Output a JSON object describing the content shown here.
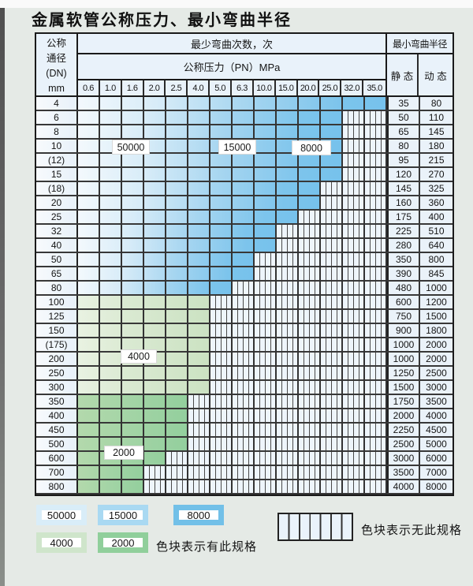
{
  "title": "金属软管公称压力、最小弯曲半径",
  "table": {
    "header": {
      "dn_lines": [
        "公称",
        "通径",
        "(DN)",
        "mm"
      ],
      "bend_cycles": "最少弯曲次数，次",
      "pressure": "公称压力（PN）MPa",
      "pressure_columns": [
        "0.6",
        "1.0",
        "1.6",
        "2.0",
        "2.5",
        "4.0",
        "5.0",
        "6.3",
        "10.0",
        "15.0",
        "20.0",
        "25.0",
        "32.0",
        "35.0"
      ],
      "bend_radius": "最小弯曲半径",
      "static_label": "静 态",
      "dynamic_label": "动 态"
    },
    "rows": [
      {
        "dn": "4",
        "colored": 14,
        "zone": "blue",
        "static": "35",
        "dynamic": "80"
      },
      {
        "dn": "6",
        "colored": 12,
        "zone": "blue",
        "static": "50",
        "dynamic": "110"
      },
      {
        "dn": "8",
        "colored": 12,
        "zone": "blue",
        "static": "65",
        "dynamic": "145"
      },
      {
        "dn": "10",
        "colored": 12,
        "zone": "blue",
        "static": "80",
        "dynamic": "180"
      },
      {
        "dn": "(12)",
        "colored": 12,
        "zone": "blue",
        "static": "95",
        "dynamic": "215"
      },
      {
        "dn": "15",
        "colored": 12,
        "zone": "blue",
        "static": "120",
        "dynamic": "270"
      },
      {
        "dn": "(18)",
        "colored": 11,
        "zone": "blue",
        "static": "145",
        "dynamic": "325"
      },
      {
        "dn": "20",
        "colored": 11,
        "zone": "blue",
        "static": "160",
        "dynamic": "360"
      },
      {
        "dn": "25",
        "colored": 10,
        "zone": "blue",
        "static": "175",
        "dynamic": "400"
      },
      {
        "dn": "32",
        "colored": 9,
        "zone": "blue",
        "static": "225",
        "dynamic": "510"
      },
      {
        "dn": "40",
        "colored": 9,
        "zone": "blue",
        "static": "280",
        "dynamic": "640"
      },
      {
        "dn": "50",
        "colored": 8,
        "zone": "blue",
        "static": "350",
        "dynamic": "800"
      },
      {
        "dn": "65",
        "colored": 8,
        "zone": "blue",
        "static": "390",
        "dynamic": "845"
      },
      {
        "dn": "80",
        "colored": 7,
        "zone": "blue",
        "static": "480",
        "dynamic": "1000"
      },
      {
        "dn": "100",
        "colored": 6,
        "zone": "green4",
        "static": "600",
        "dynamic": "1200"
      },
      {
        "dn": "125",
        "colored": 6,
        "zone": "green4",
        "static": "750",
        "dynamic": "1500"
      },
      {
        "dn": "150",
        "colored": 6,
        "zone": "green4",
        "static": "900",
        "dynamic": "1800"
      },
      {
        "dn": "(175)",
        "colored": 6,
        "zone": "green4",
        "static": "1000",
        "dynamic": "2000"
      },
      {
        "dn": "200",
        "colored": 6,
        "zone": "green4",
        "static": "1000",
        "dynamic": "2000"
      },
      {
        "dn": "250",
        "colored": 6,
        "zone": "green4",
        "static": "1250",
        "dynamic": "2500"
      },
      {
        "dn": "300",
        "colored": 6,
        "zone": "green4",
        "static": "1500",
        "dynamic": "3000"
      },
      {
        "dn": "350",
        "colored": 5,
        "zone": "green2",
        "static": "1750",
        "dynamic": "3500"
      },
      {
        "dn": "400",
        "colored": 5,
        "zone": "green2",
        "static": "2000",
        "dynamic": "4000"
      },
      {
        "dn": "450",
        "colored": 5,
        "zone": "green2",
        "static": "2250",
        "dynamic": "4500"
      },
      {
        "dn": "500",
        "colored": 5,
        "zone": "green2",
        "static": "2500",
        "dynamic": "5000"
      },
      {
        "dn": "600",
        "colored": 4,
        "zone": "green2",
        "static": "3000",
        "dynamic": "6000"
      },
      {
        "dn": "700",
        "colored": 3,
        "zone": "green2",
        "static": "3500",
        "dynamic": "7000"
      },
      {
        "dn": "800",
        "colored": 3,
        "zone": "green2",
        "static": "4000",
        "dynamic": "8000"
      }
    ],
    "zone_labels": [
      {
        "text": "50000"
      },
      {
        "text": "15000"
      },
      {
        "text": "8000"
      },
      {
        "text": "4000"
      },
      {
        "text": "2000"
      }
    ]
  },
  "legend": {
    "available_items": [
      {
        "label": "50000",
        "color": "#d9edf8"
      },
      {
        "label": "15000",
        "color": "#a9d9f2"
      },
      {
        "label": "8000",
        "color": "#72c0e8"
      },
      {
        "label": "4000",
        "color": "#cfe5cb"
      },
      {
        "label": "2000",
        "color": "#90cf9b"
      }
    ],
    "available_caption": "色块表示有此规格",
    "unavailable_caption": "色块表示无此规格"
  },
  "colors": {
    "blue_end": "#76c2ec",
    "green_4000": "#cbe2c2",
    "green_2000": "#93cf9d",
    "grid_line": "#333333",
    "page_bg": "#e5eae6"
  }
}
